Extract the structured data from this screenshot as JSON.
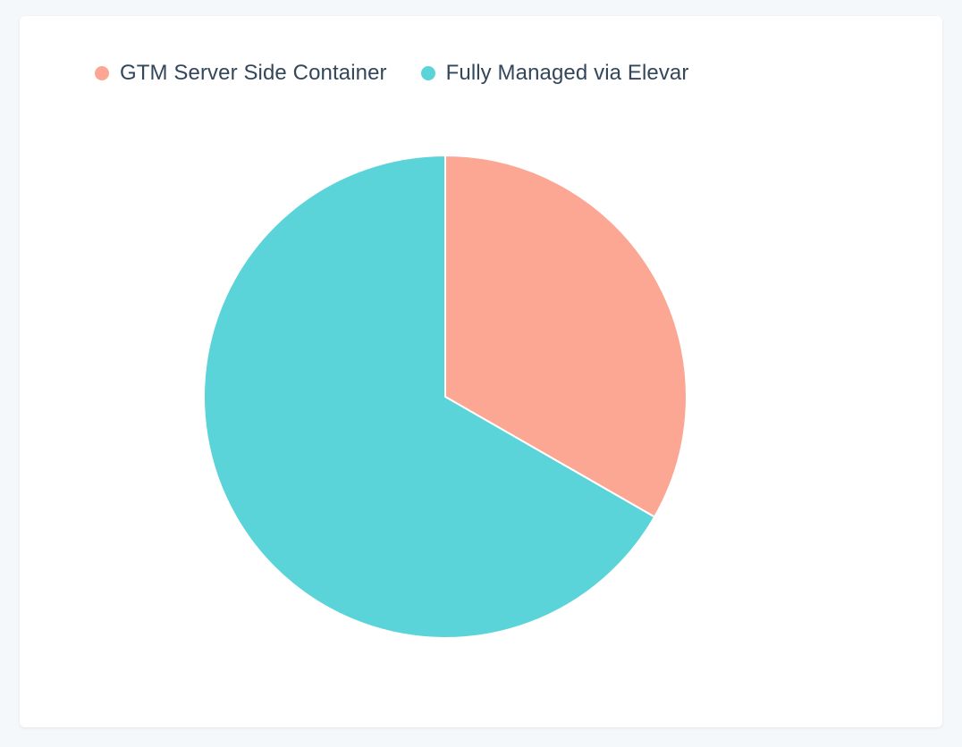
{
  "chart_data": {
    "type": "pie",
    "title": "",
    "categories": [
      "GTM Server Side Container",
      "Fully Managed via Elevar"
    ],
    "values": [
      33.3,
      66.7
    ],
    "colors": [
      "#fba794",
      "#5ad4d9"
    ],
    "legend": "top-left"
  },
  "legend": {
    "items": [
      {
        "label": "GTM Server Side Container",
        "color": "#fba794"
      },
      {
        "label": "Fully Managed via Elevar",
        "color": "#5ad4d9"
      }
    ]
  }
}
